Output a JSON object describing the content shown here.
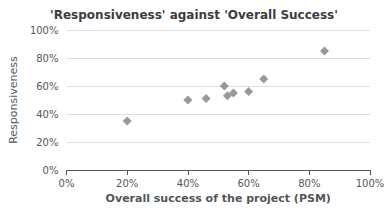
{
  "chart_data": {
    "type": "scatter",
    "title": "'Responsiveness' against 'Overall Success'",
    "xlabel": "Overall success of the project (PSM)",
    "ylabel": "Responsiveness",
    "x": [
      0.2,
      0.4,
      0.46,
      0.52,
      0.53,
      0.55,
      0.6,
      0.65,
      0.85
    ],
    "values": [
      0.35,
      0.5,
      0.51,
      0.6,
      0.53,
      0.55,
      0.56,
      0.65,
      0.85
    ],
    "color": "#808080",
    "marker": "diamond",
    "xlim": [
      0.0,
      1.0
    ],
    "ylim": [
      0.0,
      1.0
    ],
    "xticks": [
      {
        "value": 0.0,
        "label": "0%"
      },
      {
        "value": 0.2,
        "label": "20%"
      },
      {
        "value": 0.4,
        "label": "40%"
      },
      {
        "value": 0.6,
        "label": "60%"
      },
      {
        "value": 0.8,
        "label": "80%"
      },
      {
        "value": 1.0,
        "label": "100%"
      }
    ],
    "yticks": [
      {
        "value": 0.0,
        "label": "0%"
      },
      {
        "value": 0.2,
        "label": "20%"
      },
      {
        "value": 0.4,
        "label": "40%"
      },
      {
        "value": 0.6,
        "label": "60%"
      },
      {
        "value": 0.8,
        "label": "80%"
      },
      {
        "value": 1.0,
        "label": "100%"
      }
    ],
    "grid": "y"
  }
}
